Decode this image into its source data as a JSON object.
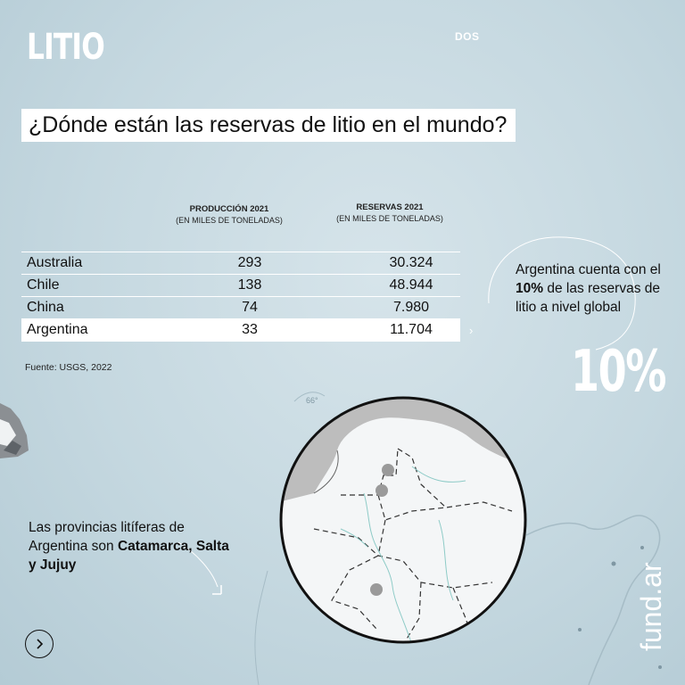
{
  "brand": {
    "logo": "LITIO",
    "episode": "DOS"
  },
  "headline": "¿Dónde están las reservas de litio en el mundo?",
  "table": {
    "columns": [
      {
        "title": "PRODUCCIÓN 2021",
        "subtitle": "(EN MILES DE TONELADAS)"
      },
      {
        "title": "RESERVAS 2021",
        "subtitle": "(EN MILES DE TONELADAS)"
      }
    ],
    "rows": [
      {
        "country": "Australia",
        "production": "293",
        "reserves": "30.324"
      },
      {
        "country": "Chile",
        "production": "138",
        "reserves": "48.944"
      },
      {
        "country": "China",
        "production": "74",
        "reserves": "7.980"
      },
      {
        "country": "Argentina",
        "production": "33",
        "reserves": "11.704"
      }
    ],
    "highlight_row": "Argentina",
    "source": "Fuente: USGS, 2022"
  },
  "callout": {
    "pre": "Argentina cuenta con el ",
    "bold": "10%",
    "post": " de las reservas de litio a nivel global",
    "stat": "10%"
  },
  "provinces": {
    "pre": "Las provincias litíferas de Argentina son ",
    "bold": "Catamarca, Salta y Jujuy"
  },
  "map": {
    "label": "66°",
    "markers": 3
  },
  "colors": {
    "highlight": "#ffffff",
    "accent_text": "#ffffff",
    "marker": "#9a9a9a"
  },
  "icons": {
    "next": "chevron-right-icon"
  },
  "site": "fund.ar"
}
